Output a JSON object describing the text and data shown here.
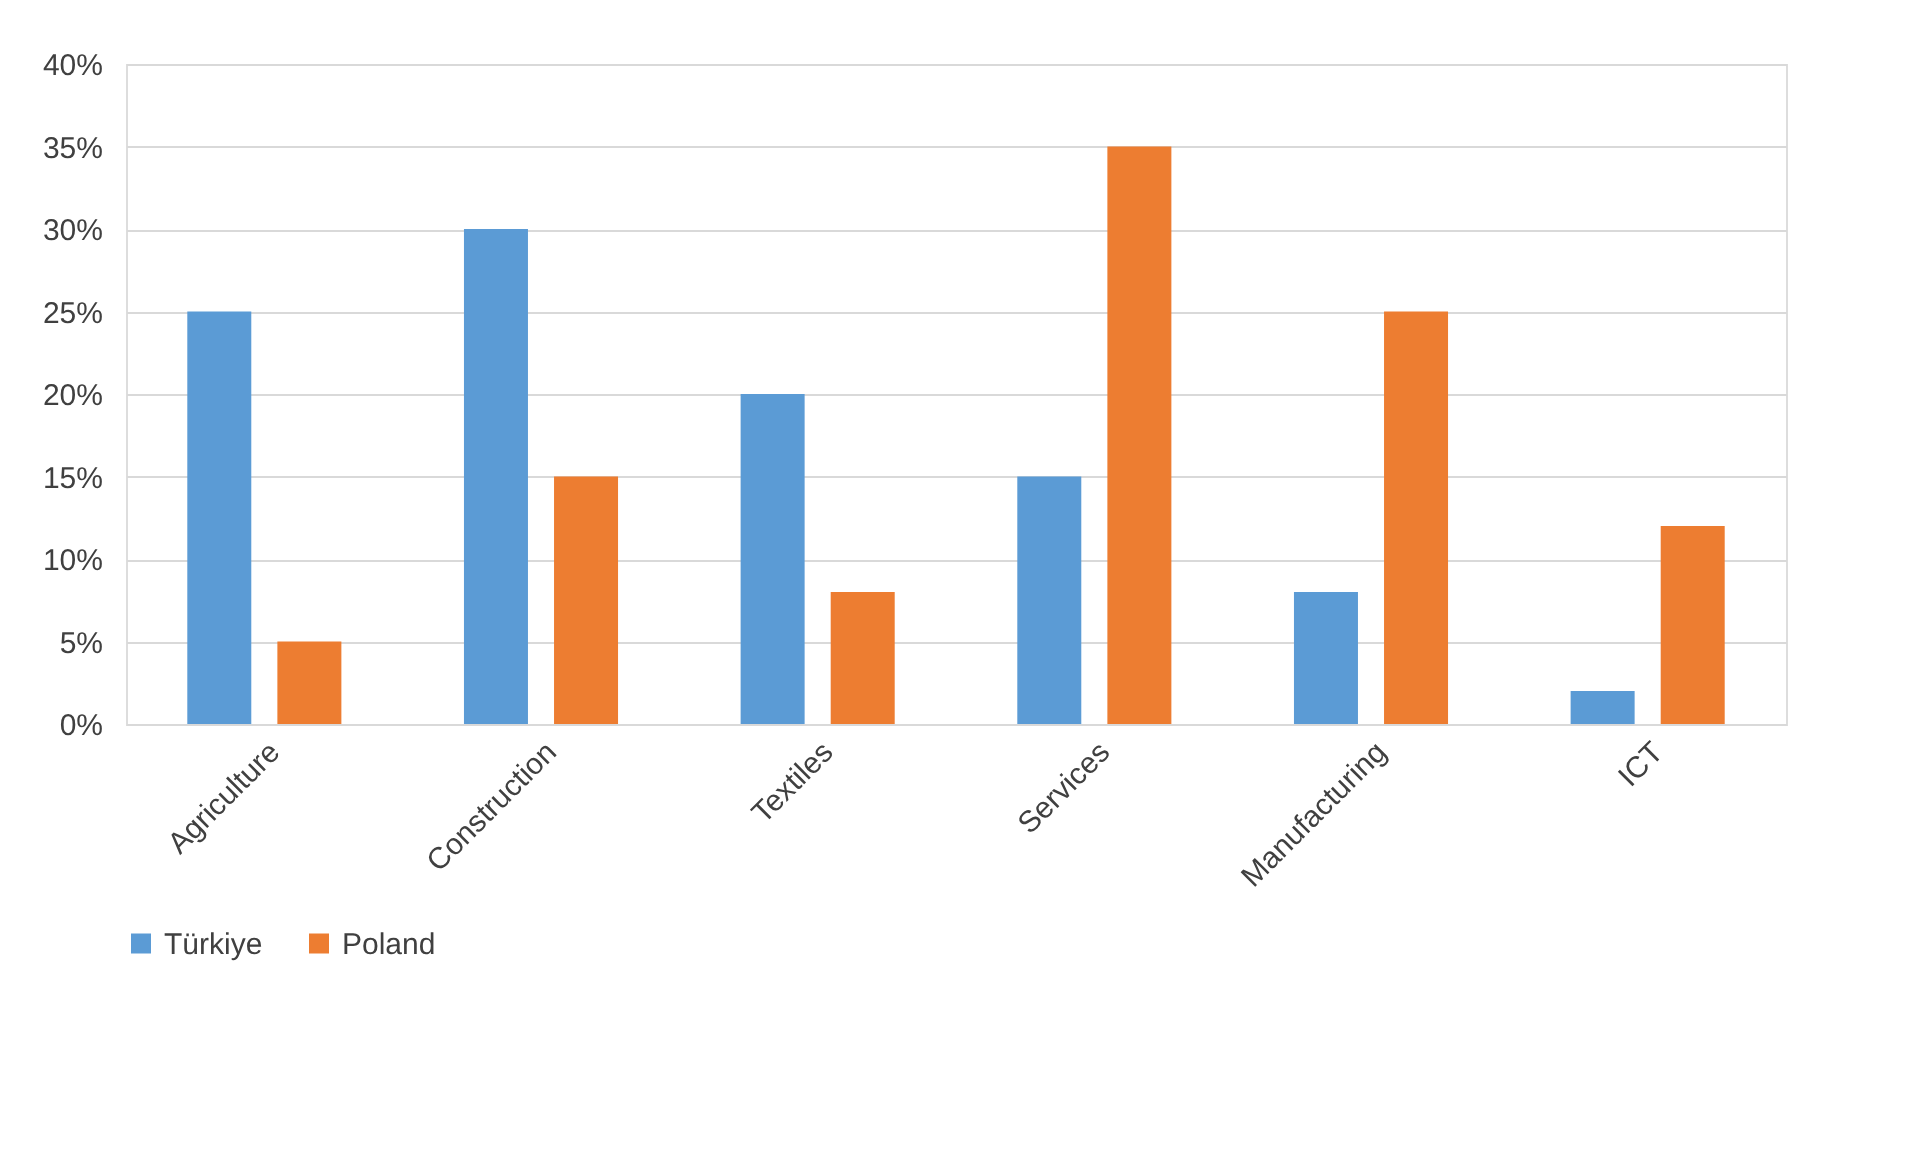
{
  "chart_data": {
    "type": "bar",
    "categories": [
      "Agriculture",
      "Construction",
      "Textiles",
      "Services",
      "Manufacturing",
      "ICT"
    ],
    "series": [
      {
        "name": "Türkiye",
        "color": "#5b9bd5",
        "values": [
          25,
          30,
          20,
          15,
          8,
          2
        ]
      },
      {
        "name": "Poland",
        "color": "#ed7d31",
        "values": [
          5,
          15,
          8,
          35,
          25,
          12
        ]
      }
    ],
    "ylim": [
      0,
      40
    ],
    "yticks": [
      {
        "value": 0,
        "label": "0%"
      },
      {
        "value": 5,
        "label": "5%"
      },
      {
        "value": 10,
        "label": "10%"
      },
      {
        "value": 15,
        "label": "15%"
      },
      {
        "value": 20,
        "label": "20%"
      },
      {
        "value": 25,
        "label": "25%"
      },
      {
        "value": 30,
        "label": "30%"
      },
      {
        "value": 35,
        "label": "35%"
      },
      {
        "value": 40,
        "label": "40%"
      }
    ],
    "grid": "y",
    "legend": "bottom"
  }
}
